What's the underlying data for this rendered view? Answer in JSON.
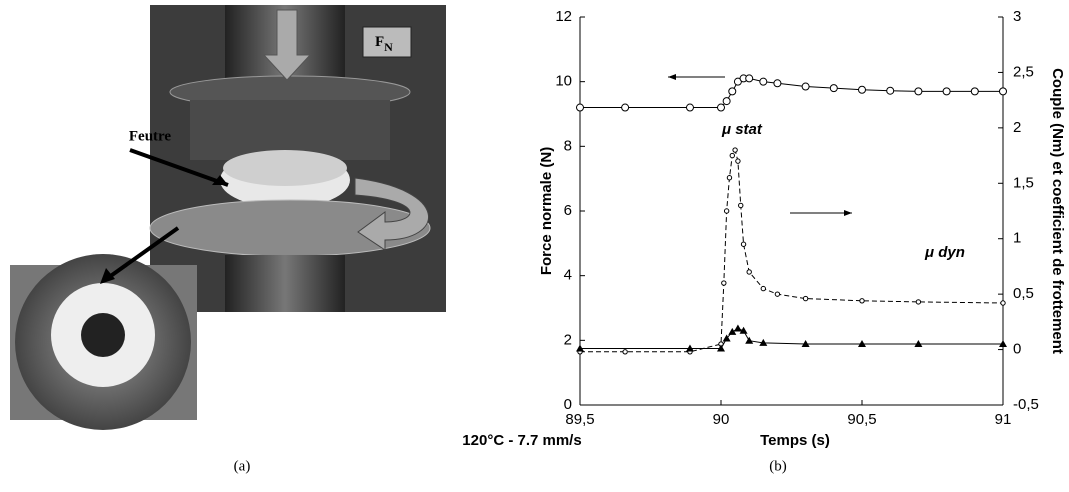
{
  "photo": {
    "label": "Feutre",
    "force_label": {
      "main": "F",
      "sub": "N"
    }
  },
  "captions": [
    "(a)",
    "(b)"
  ],
  "chart_data": {
    "type": "line",
    "xlabel": "Temps (s)",
    "ylabel": "Force normale (N)",
    "y2label": "Couple (Nm) et coefficient de frottement",
    "annotations": [
      "μ stat",
      "μ dyn",
      "120°C - 7.7 mm/s"
    ],
    "xlim": [
      89.5,
      91
    ],
    "xticks": [
      {
        "value": 89.5,
        "label": "89,5"
      },
      90,
      {
        "value": 90.5,
        "label": "90,5"
      },
      91
    ],
    "ylim": [
      0,
      12
    ],
    "yticks": [
      0,
      2,
      4,
      6,
      8,
      10,
      12
    ],
    "y2lim": [
      -0.5,
      3
    ],
    "y2ticks": [
      {
        "value": -0.5,
        "label": "-0,5"
      },
      0,
      {
        "value": 0.5,
        "label": "0,5"
      },
      1,
      {
        "value": 1.5,
        "label": "1,5"
      },
      2,
      {
        "value": 2.5,
        "label": "2,5"
      },
      3
    ],
    "grid": false,
    "series": [
      {
        "color": "#000000",
        "marker": "circle",
        "dash": "solid",
        "x": [
          89.5,
          89.66,
          89.89,
          90.0,
          90.02,
          90.04,
          90.06,
          90.08,
          90.1,
          90.15,
          90.2,
          90.3,
          90.4,
          90.5,
          90.6,
          90.7,
          90.8,
          90.9,
          91
        ],
        "values": [
          9.2,
          9.2,
          9.2,
          9.2,
          9.4,
          9.7,
          10.0,
          10.1,
          10.1,
          10.0,
          9.95,
          9.85,
          9.8,
          9.75,
          9.72,
          9.7,
          9.7,
          9.7,
          9.7
        ]
      },
      {
        "color": "#000000",
        "marker": "small-circle",
        "dash": "dashed",
        "axis": "y2",
        "x": [
          89.5,
          89.66,
          89.89,
          90.0,
          90.01,
          90.02,
          90.03,
          90.04,
          90.05,
          90.06,
          90.07,
          90.08,
          90.1,
          90.15,
          90.2,
          90.3,
          90.5,
          90.7,
          91
        ],
        "values": [
          -0.02,
          -0.02,
          -0.02,
          0.05,
          0.6,
          1.25,
          1.55,
          1.75,
          1.8,
          1.7,
          1.3,
          0.95,
          0.7,
          0.55,
          0.5,
          0.46,
          0.44,
          0.43,
          0.42
        ]
      },
      {
        "color": "#000000",
        "marker": "triangle",
        "dash": "solid",
        "axis": "y2",
        "x": [
          89.5,
          89.89,
          90.0,
          90.02,
          90.04,
          90.06,
          90.08,
          90.1,
          90.15,
          90.3,
          90.5,
          90.7,
          91
        ],
        "values": [
          0.01,
          0.01,
          0.01,
          0.1,
          0.16,
          0.19,
          0.17,
          0.08,
          0.06,
          0.05,
          0.05,
          0.05,
          0.05
        ]
      }
    ]
  }
}
